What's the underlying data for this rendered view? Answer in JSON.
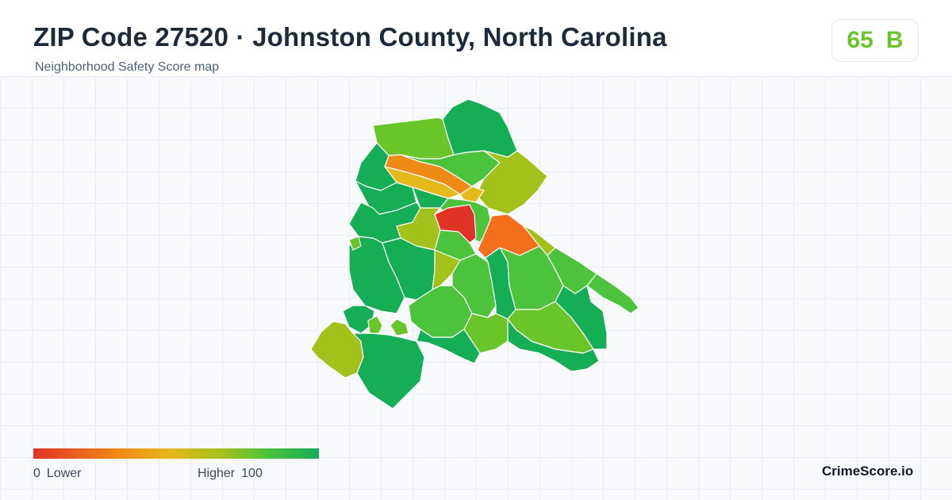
{
  "header": {
    "title": "ZIP Code 27520 · Johnston County, North Carolina",
    "subtitle": "Neighborhood Safety Score map"
  },
  "score": {
    "value": "65",
    "grade": "B",
    "color": "#6ac52a"
  },
  "legend": {
    "min_value": "0",
    "min_label": "Lower",
    "max_label": "Higher",
    "max_value": "100",
    "colors": [
      "#e03326",
      "#ef8a17",
      "#e6b91a",
      "#a3c11b",
      "#4cc23d",
      "#16ad57"
    ]
  },
  "brand": "CrimeScore.io"
}
